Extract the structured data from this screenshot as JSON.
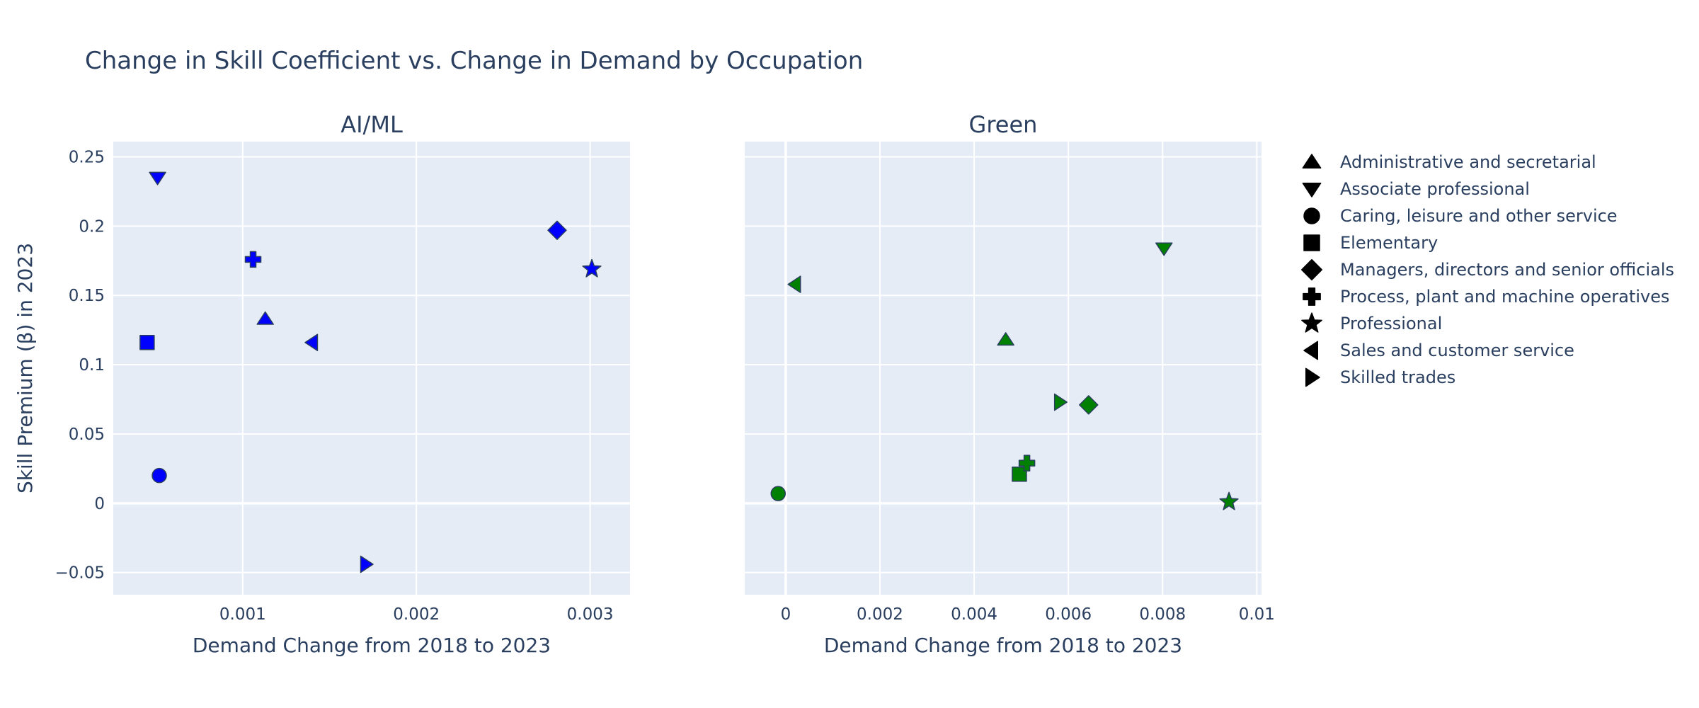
{
  "chart_data": {
    "title": "Change in Skill Coefficient vs. Change in Demand by Occupation",
    "type": "scatter",
    "ylabel": "Skill Premium (β) in 2023",
    "ylim": [
      -0.066,
      0.261
    ],
    "yticks": [
      -0.05,
      0,
      0.05,
      0.1,
      0.15,
      0.2,
      0.25
    ],
    "ytick_labels": [
      "−0.05",
      "0",
      "0.05",
      "0.1",
      "0.15",
      "0.2",
      "0.25"
    ],
    "grid": true,
    "legend_position": "right",
    "legend": [
      {
        "name": "Administrative and secretarial",
        "symbol": "triangle-up"
      },
      {
        "name": "Associate professional",
        "symbol": "triangle-down"
      },
      {
        "name": "Caring, leisure and other service",
        "symbol": "circle"
      },
      {
        "name": "Elementary",
        "symbol": "square"
      },
      {
        "name": "Managers, directors and senior officials",
        "symbol": "diamond"
      },
      {
        "name": "Process, plant and machine operatives",
        "symbol": "cross"
      },
      {
        "name": "Professional",
        "symbol": "star"
      },
      {
        "name": "Sales and customer service",
        "symbol": "triangle-left"
      },
      {
        "name": "Skilled trades",
        "symbol": "triangle-right"
      }
    ],
    "panels": [
      {
        "subtitle": "AI/ML",
        "xlabel": "Demand Change from 2018 to 2023",
        "color": "#0000ff",
        "xlim": [
          0.000255,
          0.00323
        ],
        "xticks": [
          0.001,
          0.002,
          0.003
        ],
        "xtick_labels": [
          "0.001",
          "0.002",
          "0.003"
        ],
        "points": [
          {
            "occupation": "Administrative and secretarial",
            "x": 0.00113,
            "y": 0.133
          },
          {
            "occupation": "Associate professional",
            "x": 0.00051,
            "y": 0.235
          },
          {
            "occupation": "Caring, leisure and other service",
            "x": 0.00052,
            "y": 0.02
          },
          {
            "occupation": "Elementary",
            "x": 0.00045,
            "y": 0.116
          },
          {
            "occupation": "Managers, directors and senior officials",
            "x": 0.00281,
            "y": 0.197
          },
          {
            "occupation": "Process, plant and machine operatives",
            "x": 0.00106,
            "y": 0.176
          },
          {
            "occupation": "Professional",
            "x": 0.00301,
            "y": 0.169
          },
          {
            "occupation": "Sales and customer service",
            "x": 0.0014,
            "y": 0.116
          },
          {
            "occupation": "Skilled trades",
            "x": 0.00171,
            "y": -0.044
          }
        ]
      },
      {
        "subtitle": "Green",
        "xlabel": "Demand Change from 2018 to 2023",
        "color": "#008000",
        "xlim": [
          -0.00087,
          0.0101
        ],
        "xticks": [
          0,
          0.002,
          0.004,
          0.006,
          0.008,
          0.01
        ],
        "xtick_labels": [
          "0",
          "0.002",
          "0.004",
          "0.006",
          "0.008",
          "0.01"
        ],
        "points": [
          {
            "occupation": "Administrative and secretarial",
            "x": 0.00467,
            "y": 0.118
          },
          {
            "occupation": "Associate professional",
            "x": 0.00803,
            "y": 0.184
          },
          {
            "occupation": "Caring, leisure and other service",
            "x": -0.00016,
            "y": 0.007
          },
          {
            "occupation": "Elementary",
            "x": 0.00496,
            "y": 0.021
          },
          {
            "occupation": "Managers, directors and senior officials",
            "x": 0.00643,
            "y": 0.071
          },
          {
            "occupation": "Process, plant and machine operatives",
            "x": 0.00512,
            "y": 0.029
          },
          {
            "occupation": "Professional",
            "x": 0.00941,
            "y": 0.001
          },
          {
            "occupation": "Sales and customer service",
            "x": 0.0002,
            "y": 0.158
          },
          {
            "occupation": "Skilled trades",
            "x": 0.00582,
            "y": 0.073
          }
        ]
      }
    ]
  }
}
